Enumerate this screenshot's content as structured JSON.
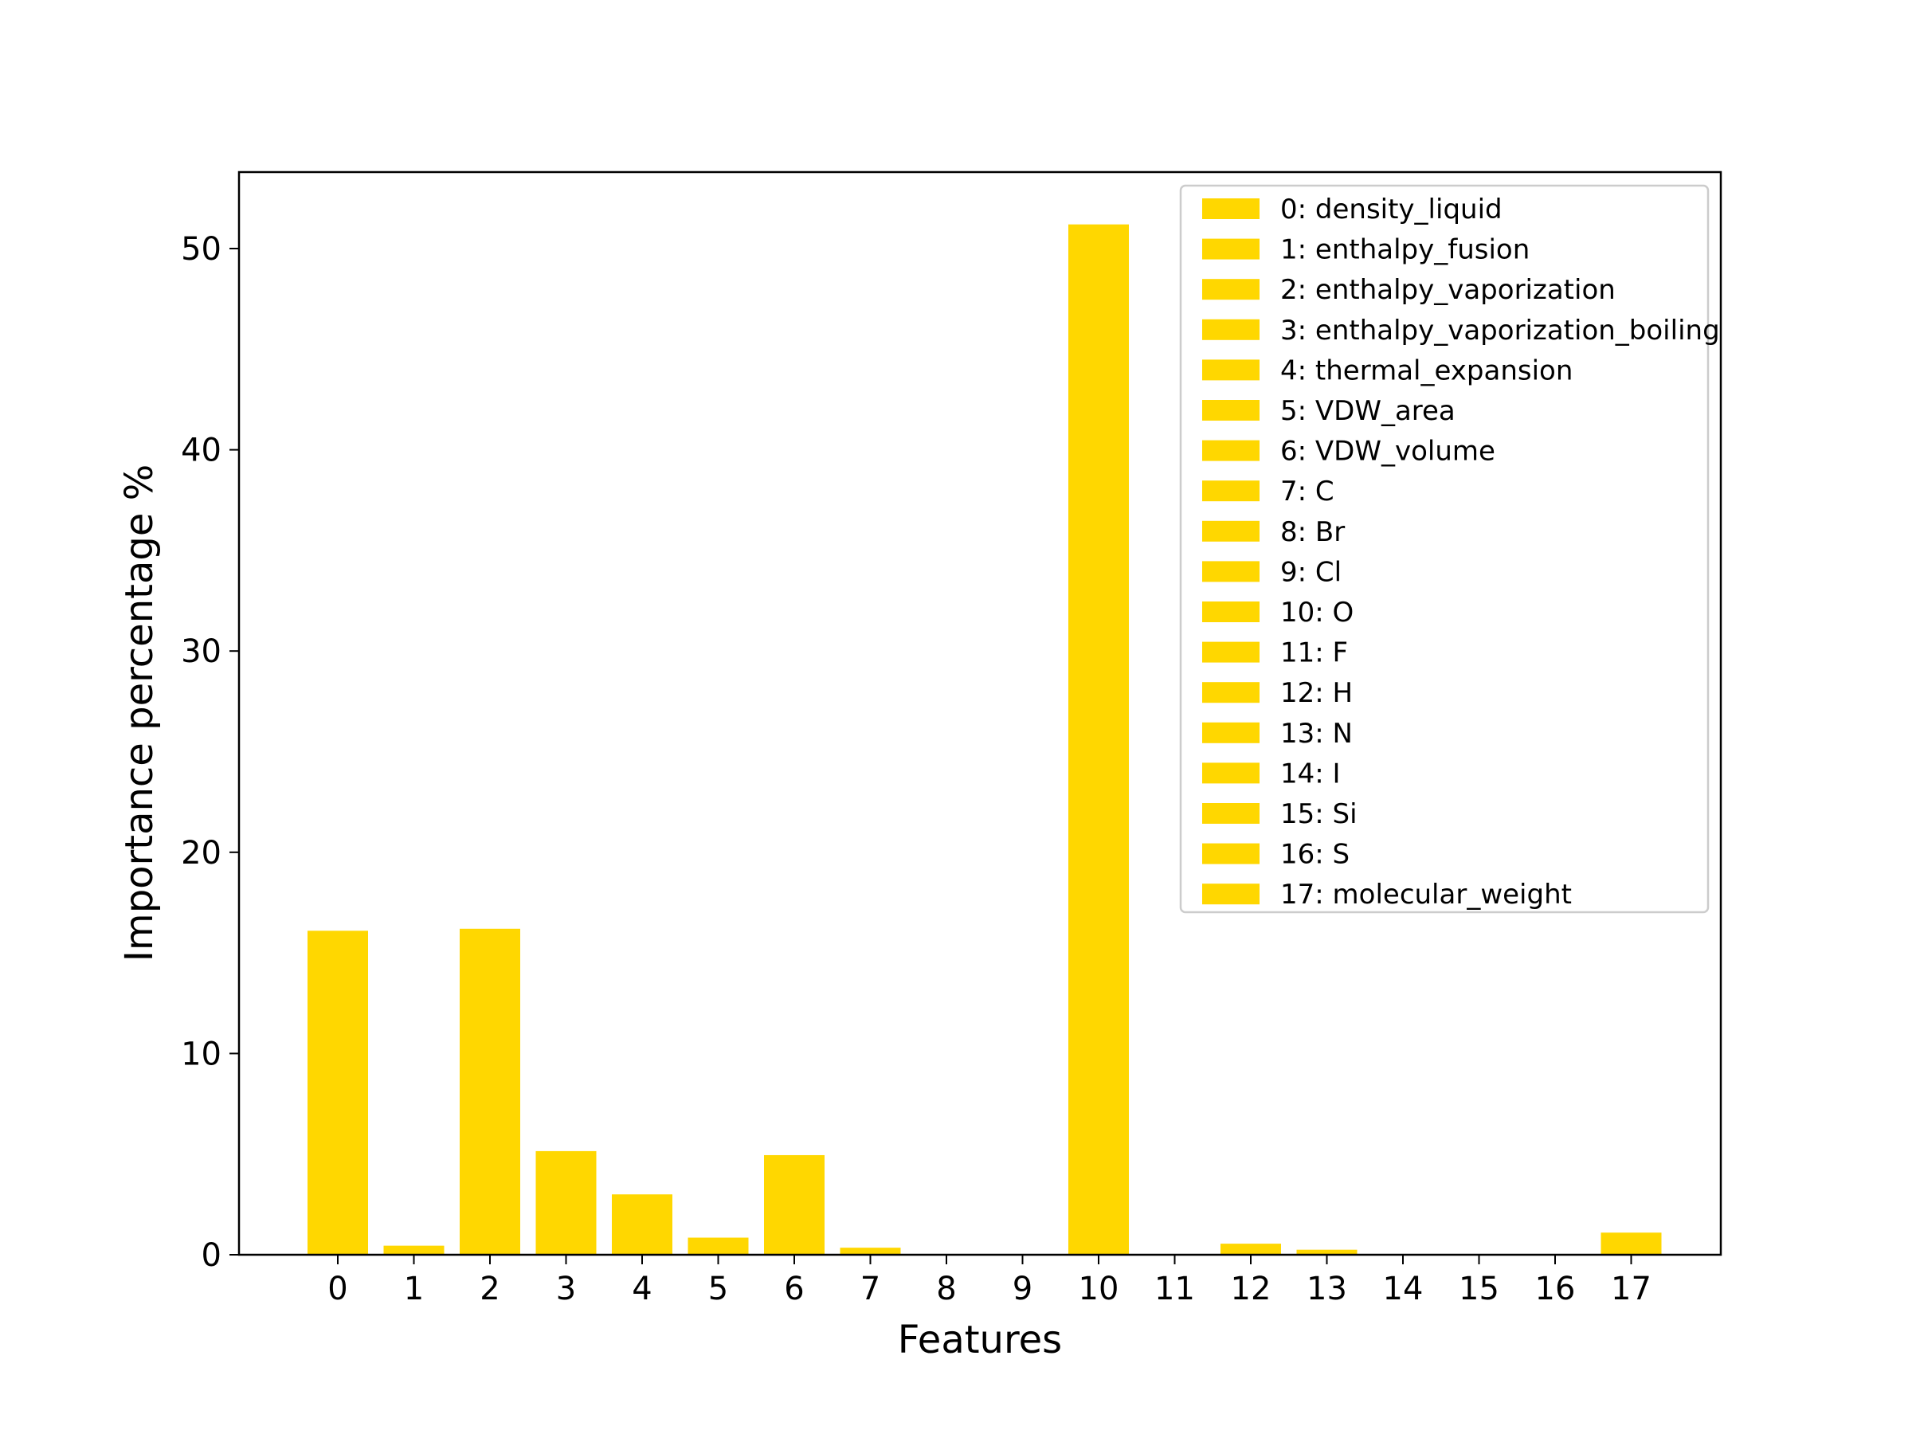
{
  "chart_data": {
    "type": "bar",
    "title": "",
    "xlabel": "Features",
    "ylabel": "Importance percentage %",
    "categories": [
      "0",
      "1",
      "2",
      "3",
      "4",
      "5",
      "6",
      "7",
      "8",
      "9",
      "10",
      "11",
      "12",
      "13",
      "14",
      "15",
      "16",
      "17"
    ],
    "values": [
      16.1,
      0.45,
      16.2,
      5.15,
      3.0,
      0.85,
      4.95,
      0.35,
      0.0,
      0.0,
      51.2,
      0.0,
      0.55,
      0.25,
      0.0,
      0.0,
      0.0,
      1.1
    ],
    "ylim": [
      0,
      53.8
    ],
    "yticks": [
      0,
      10,
      20,
      30,
      40,
      50
    ],
    "grid": false,
    "legend_position": "top-right",
    "bar_color": "#FFD700",
    "legend": [
      "0: density_liquid",
      "1: enthalpy_fusion",
      "2: enthalpy_vaporization",
      "3: enthalpy_vaporization_boiling",
      "4: thermal_expansion",
      "5: VDW_area",
      "6: VDW_volume",
      "7: C",
      "8: Br",
      "9: Cl",
      "10: O",
      "11: F",
      "12: H",
      "13: N",
      "14: I",
      "15: Si",
      "16: S",
      "17: molecular_weight"
    ]
  }
}
